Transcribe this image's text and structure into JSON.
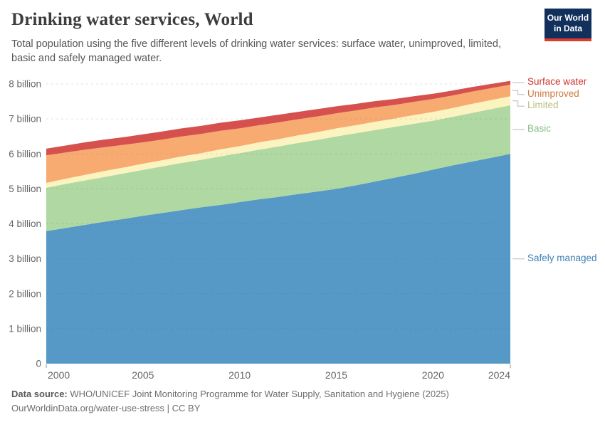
{
  "header": {
    "title": "Drinking water services, World",
    "subtitle": "Total population using the five different levels of drinking water services: surface water, unimproved, limited, basic and safely managed water."
  },
  "logo": {
    "line1": "Our World",
    "line2": "in Data"
  },
  "footer": {
    "source_label": "Data source:",
    "source_text": "WHO/UNICEF Joint Monitoring Programme for Water Supply, Sanitation and Hygiene (2025)",
    "link_text": "OurWorldinData.org/water-use-stress | CC BY"
  },
  "colors": {
    "logo_bg": "#12305c",
    "logo_stripe": "#dc3b30",
    "gridline": "#5b5b5b",
    "axis_text": "#666666",
    "connector": "#cfcfcf",
    "tick": "#999999"
  },
  "chart_data": {
    "type": "area",
    "stacked": true,
    "title": "Drinking water services, World",
    "unit": "people",
    "x_label": "Year",
    "x": [
      2000,
      2001,
      2002,
      2003,
      2004,
      2005,
      2006,
      2007,
      2008,
      2009,
      2010,
      2011,
      2012,
      2013,
      2014,
      2015,
      2016,
      2017,
      2018,
      2019,
      2020,
      2021,
      2022,
      2023,
      2024
    ],
    "x_ticks": [
      2000,
      2005,
      2010,
      2015,
      2020,
      2024
    ],
    "y_ticks": [
      0,
      1,
      2,
      3,
      4,
      5,
      6,
      7,
      8
    ],
    "y_tick_labels": [
      "0",
      "1 billion",
      "2 billion",
      "3 billion",
      "4 billion",
      "5 billion",
      "6 billion",
      "7 billion",
      "8 billion"
    ],
    "ylim": [
      0,
      8.2
    ],
    "values_unit": "billions of people",
    "grid": true,
    "legend_position": "right",
    "series": [
      {
        "name": "Safely managed",
        "color": "#5699c6",
        "label_color": "#3d80b8",
        "values": [
          3.79,
          3.88,
          3.97,
          4.06,
          4.14,
          4.23,
          4.31,
          4.39,
          4.47,
          4.54,
          4.62,
          4.7,
          4.77,
          4.85,
          4.92,
          5.0,
          5.1,
          5.21,
          5.32,
          5.43,
          5.55,
          5.67,
          5.78,
          5.89,
          6.0
        ]
      },
      {
        "name": "Basic",
        "color": "#b0d8a3",
        "label_color": "#88bc88",
        "values": [
          1.24,
          1.26,
          1.27,
          1.28,
          1.3,
          1.31,
          1.33,
          1.35,
          1.36,
          1.39,
          1.4,
          1.42,
          1.44,
          1.46,
          1.48,
          1.5,
          1.49,
          1.47,
          1.45,
          1.43,
          1.4,
          1.39,
          1.39,
          1.39,
          1.39
        ]
      },
      {
        "name": "Limited",
        "color": "#fbf3c0",
        "label_color": "#bcbe7d",
        "values": [
          0.14,
          0.15,
          0.16,
          0.17,
          0.17,
          0.18,
          0.18,
          0.19,
          0.19,
          0.2,
          0.2,
          0.21,
          0.21,
          0.22,
          0.22,
          0.23,
          0.23,
          0.24,
          0.24,
          0.25,
          0.25,
          0.25,
          0.26,
          0.26,
          0.26
        ]
      },
      {
        "name": "Unimproved",
        "color": "#f8ab71",
        "label_color": "#ce7a3d",
        "values": [
          0.79,
          0.75,
          0.72,
          0.68,
          0.65,
          0.61,
          0.59,
          0.57,
          0.55,
          0.53,
          0.51,
          0.49,
          0.48,
          0.46,
          0.45,
          0.43,
          0.42,
          0.41,
          0.39,
          0.38,
          0.37,
          0.36,
          0.35,
          0.34,
          0.33
        ]
      },
      {
        "name": "Surface water",
        "color": "#d6514e",
        "label_color": "#cd3530",
        "values": [
          0.19,
          0.2,
          0.21,
          0.22,
          0.22,
          0.23,
          0.23,
          0.23,
          0.23,
          0.23,
          0.23,
          0.22,
          0.22,
          0.21,
          0.21,
          0.2,
          0.19,
          0.18,
          0.17,
          0.16,
          0.15,
          0.14,
          0.13,
          0.12,
          0.11
        ]
      }
    ]
  }
}
